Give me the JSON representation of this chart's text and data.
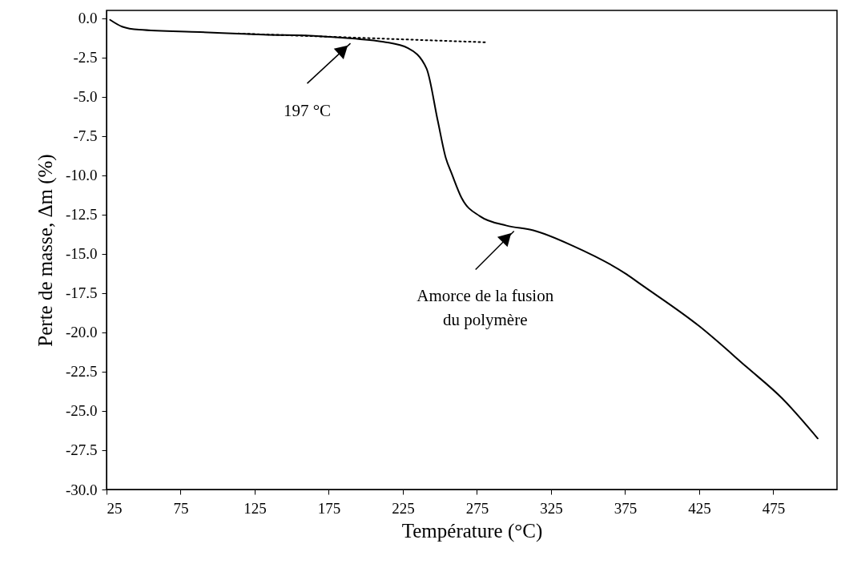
{
  "chart_data": {
    "type": "line",
    "xlabel": "Température (°C)",
    "ylabel": "Perte de masse, Δm (%)",
    "xlim": [
      25,
      518
    ],
    "xticks": [
      25,
      75,
      125,
      175,
      225,
      275,
      325,
      375,
      425,
      475
    ],
    "ylim": [
      -30,
      0.5
    ],
    "yticks": [
      {
        "value": 0,
        "label": "0.0"
      },
      -2.5,
      {
        "value": -5,
        "label": "-5.0"
      },
      -7.5,
      {
        "value": -10,
        "label": "-10.0"
      },
      -12.5,
      {
        "value": -15,
        "label": "-15.0"
      },
      -17.5,
      {
        "value": -20,
        "label": "-20.0"
      },
      -22.5,
      {
        "value": -25,
        "label": "-25.0"
      },
      -27.5,
      {
        "value": -30,
        "label": "-30.0"
      }
    ],
    "grid": false,
    "series": [
      {
        "color": "#000000",
        "line_style": "solid",
        "x": [
          27.4,
          35.5,
          47,
          88,
          131,
          169,
          190.7,
          212,
          228.5,
          241,
          248.5,
          254,
          258,
          264.7,
          277,
          295,
          313,
          340,
          376,
          385,
          425,
          457,
          481,
          505
        ],
        "values": [
          -0.1,
          -0.53,
          -0.73,
          -0.88,
          -1.04,
          -1.14,
          -1.29,
          -1.5,
          -1.9,
          -3.2,
          -6.5,
          -8.9,
          -9.9,
          -11.45,
          -12.6,
          -13.2,
          -13.5,
          -14.5,
          -16.3,
          -16.9,
          -19.6,
          -22.2,
          -24.2,
          -26.75
        ]
      },
      {
        "color": "#000000",
        "line_style": "dotted",
        "x": [
          114,
          281
        ],
        "values": [
          -0.97,
          -1.53
        ]
      }
    ],
    "annotations": [
      {
        "text": "197 °C",
        "x": 190.7,
        "y": -1.29
      },
      {
        "text": "Amorce de la fusion\ndu polymère",
        "x": 300,
        "y": -13.3
      }
    ]
  }
}
